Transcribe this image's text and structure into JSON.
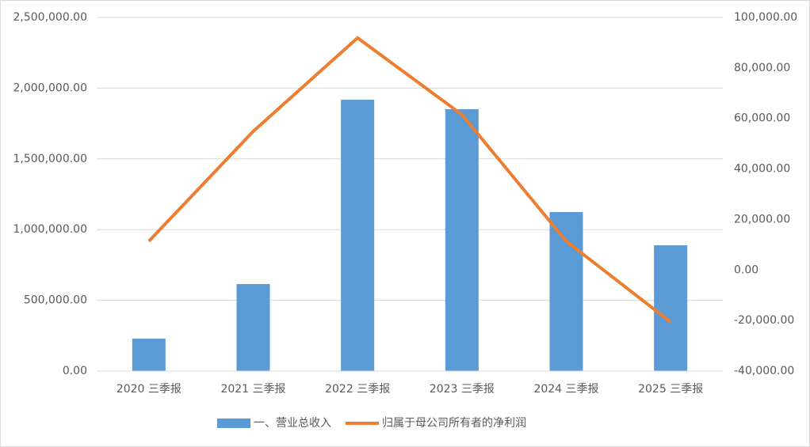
{
  "chart_data": {
    "type": "bar",
    "categories": [
      "2020 三季报",
      "2021 三季报",
      "2022 三季报",
      "2023 三季报",
      "2024 三季报",
      "2025 三季报"
    ],
    "series": [
      {
        "name": "一、营业总收入",
        "type": "bar",
        "color": "#5b9bd5",
        "values": [
          229000,
          615000,
          1918000,
          1851000,
          1124000,
          889000
        ]
      },
      {
        "name": "归属于母公司所有者的净利润",
        "type": "line",
        "axis": "y2",
        "color": "#ed7d31",
        "values": [
          11400,
          54900,
          91900,
          61500,
          11400,
          -20600
        ]
      }
    ],
    "ylim": [
      0,
      2500000
    ],
    "yticks": [
      {
        "value": 0,
        "label": "0.00"
      },
      {
        "value": 500000,
        "label": "500,000.00"
      },
      {
        "value": 1000000,
        "label": "1,000,000.00"
      },
      {
        "value": 1500000,
        "label": "1,500,000.00"
      },
      {
        "value": 2000000,
        "label": "2,000,000.00"
      },
      {
        "value": 2500000,
        "label": "2,500,000.00"
      }
    ],
    "y2lim": [
      -40000,
      100000
    ],
    "y2ticks": [
      {
        "value": -40000,
        "label": "-40,000.00"
      },
      {
        "value": -20000,
        "label": "-20,000.00"
      },
      {
        "value": 0,
        "label": "0.00"
      },
      {
        "value": 20000,
        "label": "20,000.00"
      },
      {
        "value": 40000,
        "label": "40,000.00"
      },
      {
        "value": 60000,
        "label": "60,000.00"
      },
      {
        "value": 80000,
        "label": "80,000.00"
      },
      {
        "value": 100000,
        "label": "100,000.00"
      }
    ],
    "grid": true,
    "legend": "bottom"
  }
}
